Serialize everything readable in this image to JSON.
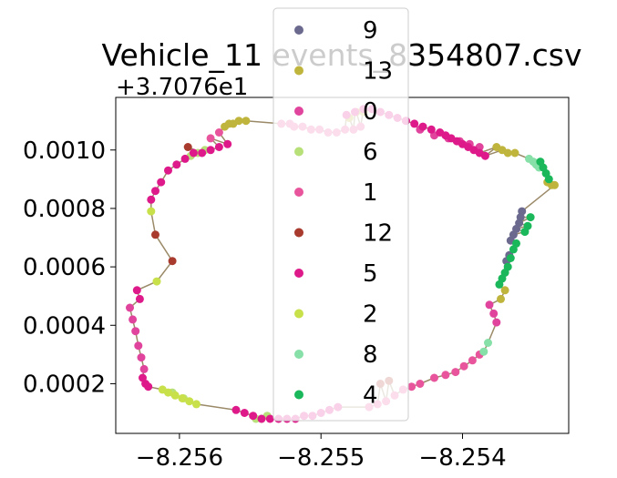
{
  "chart_data": {
    "type": "scatter",
    "title": "Vehicle_11 events_8354807.csv",
    "xlabel": "",
    "ylabel": "",
    "y_offset_text": "+3.7076e1",
    "xlim": [
      -8.25645,
      -8.25325
    ],
    "ylim": [
      3e-05,
      0.00118
    ],
    "x_ticks": [
      -8.256,
      -8.255,
      -8.254
    ],
    "x_tick_labels": [
      "−8.256",
      "−8.255",
      "−8.254"
    ],
    "y_ticks": [
      0.0002,
      0.0004,
      0.0006,
      0.0008,
      0.001
    ],
    "y_tick_labels": [
      "0.0002",
      "0.0004",
      "0.0006",
      "0.0008",
      "0.0010"
    ],
    "grid": false,
    "legend_position": "upper center",
    "path_color": "#9b8a68",
    "series": [
      {
        "name": "9",
        "color": "#6b6a8e",
        "x": [
          -8.25358,
          -8.25359,
          -8.2536,
          -8.25362,
          -8.25364,
          -8.25366,
          -8.25367,
          -8.25369
        ],
        "y": [
          0.00079,
          0.00077,
          0.00075,
          0.00073,
          0.00071,
          0.00069,
          0.00064,
          0.00062
        ]
      },
      {
        "name": "13",
        "color": "#bfb43c",
        "x": [
          -8.25568,
          -8.25565,
          -8.25562,
          -8.25558,
          -8.25553,
          -8.2548,
          -8.25475,
          -8.2547,
          -8.25376,
          -8.25372,
          -8.25368,
          -8.25363,
          -8.2534,
          -8.25337,
          -8.25335,
          -8.25373,
          -8.2537
        ],
        "y": [
          0.00108,
          0.00109,
          0.00109,
          0.0011,
          0.0011,
          0.00111,
          0.00113,
          0.00113,
          0.00101,
          0.001,
          0.00099,
          0.00099,
          0.00089,
          0.00088,
          0.00088,
          0.00049,
          0.00052
        ]
      },
      {
        "name": "0",
        "color": "#e0449c",
        "x": [
          -8.25635,
          -8.25633,
          -8.25631,
          -8.25629,
          -8.25627,
          -8.25625,
          -8.2544,
          -8.2543,
          -8.2542,
          -8.2541,
          -8.25402,
          -8.25395,
          -8.25388,
          -8.25381,
          -8.25378,
          -8.25376
        ],
        "y": [
          0.00046,
          0.00042,
          0.00038,
          0.00033,
          0.00029,
          0.00025,
          0.0011,
          0.00107,
          0.00105,
          0.00104,
          0.00103,
          0.00102,
          0.00101,
          0.00047,
          0.00044,
          0.00041
        ]
      },
      {
        "name": "6",
        "color": "#b8e078",
        "x": [
          -8.25592,
          -8.25587,
          -8.25582,
          -8.25546,
          -8.25542,
          -8.25538,
          -8.25605,
          -8.25597
        ],
        "y": [
          0.00098,
          0.00099,
          0.001,
          8e-05,
          8e-05,
          9e-05,
          0.00017,
          0.00015
        ]
      },
      {
        "name": "1",
        "color": "#e8559c",
        "x": [
          -8.25578,
          -8.25572,
          -8.25519,
          -8.25513,
          -8.25507,
          -8.25501,
          -8.25495,
          -8.25489,
          -8.25483,
          -8.25477,
          -8.25472,
          -8.25528,
          -8.25522,
          -8.25466,
          -8.2546,
          -8.25454,
          -8.25448,
          -8.25442,
          -8.25436,
          -8.2543,
          -8.2542,
          -8.25412,
          -8.25405,
          -8.25399,
          -8.25393,
          -8.25388
        ],
        "y": [
          0.00104,
          0.00106,
          0.00108,
          0.00108,
          0.00107,
          0.00107,
          0.00106,
          0.00106,
          0.00107,
          0.00107,
          0.00108,
          0.00109,
          0.00109,
          0.00012,
          0.00013,
          0.00014,
          0.00016,
          0.00018,
          0.00019,
          0.0002,
          0.00022,
          0.00023,
          0.00024,
          0.00026,
          0.00028,
          0.0003
        ]
      },
      {
        "name": "12",
        "color": "#a83a2e",
        "x": [
          -8.25617,
          -8.25605,
          -8.25594,
          -8.25458,
          -8.25452
        ],
        "y": [
          0.00071,
          0.00062,
          0.00101,
          0.0002,
          0.00021
        ]
      },
      {
        "name": "5",
        "color": "#de1a8a",
        "x": [
          -8.2563,
          -8.25628,
          -8.25626,
          -8.25624,
          -8.25622,
          -8.2562,
          -8.25617,
          -8.25613,
          -8.25608,
          -8.25602,
          -8.25596,
          -8.2559,
          -8.25584,
          -8.25578,
          -8.25572,
          -8.25566,
          -8.2556,
          -8.25554,
          -8.25548,
          -8.25542,
          -8.25536,
          -8.2553,
          -8.25524,
          -8.25518,
          -8.25512,
          -8.25506,
          -8.255,
          -8.25494,
          -8.25488,
          -8.25482,
          -8.25476,
          -8.2547,
          -8.25464,
          -8.25458,
          -8.25452,
          -8.25446,
          -8.2544,
          -8.25434,
          -8.25428,
          -8.25422,
          -8.25416,
          -8.25412,
          -8.25408,
          -8.25404,
          -8.254,
          -8.25396,
          -8.25392,
          -8.25388,
          -8.25384
        ],
        "y": [
          0.00052,
          0.00049,
          0.00022,
          0.0002,
          0.00019,
          0.00083,
          0.00086,
          0.00089,
          0.00093,
          0.00095,
          0.00097,
          0.00099,
          0.00099,
          0.001,
          0.00101,
          0.00102,
          0.00011,
          0.0001,
          9e-05,
          8e-05,
          8e-05,
          8e-05,
          8e-05,
          8e-05,
          9e-05,
          9e-05,
          0.0001,
          0.00011,
          0.00012,
          0.00112,
          0.00113,
          0.00114,
          0.00114,
          0.00113,
          0.00112,
          0.00111,
          0.0011,
          0.00109,
          0.00108,
          0.00107,
          0.00106,
          0.00105,
          0.00104,
          0.00103,
          0.00102,
          0.00101,
          0.001,
          0.00099,
          0.00098
        ]
      },
      {
        "name": "2",
        "color": "#c8e04a",
        "x": [
          -8.2562,
          -8.25616,
          -8.25612,
          -8.25608,
          -8.25603,
          -8.25598,
          -8.25593,
          -8.25588
        ],
        "y": [
          0.00079,
          0.00055,
          0.00018,
          0.00017,
          0.00016,
          0.00015,
          0.00014,
          0.00013
        ]
      },
      {
        "name": "8",
        "color": "#86e0a8",
        "x": [
          -8.25353,
          -8.2535,
          -8.25348,
          -8.25346,
          -8.25385,
          -8.25382
        ],
        "y": [
          0.00097,
          0.00096,
          0.00095,
          0.00094,
          0.00031,
          0.00034
        ]
      },
      {
        "name": "4",
        "color": "#1ab85a",
        "x": [
          -8.25345,
          -8.25343,
          -8.25341,
          -8.25339,
          -8.25362,
          -8.25364,
          -8.25366,
          -8.25368,
          -8.2537,
          -8.25372,
          -8.25374,
          -8.25356,
          -8.25354,
          -8.25352
        ],
        "y": [
          0.00096,
          0.00094,
          0.00092,
          0.0009,
          0.00068,
          0.00066,
          0.00063,
          0.0006,
          0.00058,
          0.00056,
          0.00054,
          0.00072,
          0.00074,
          0.00077
        ]
      }
    ]
  }
}
